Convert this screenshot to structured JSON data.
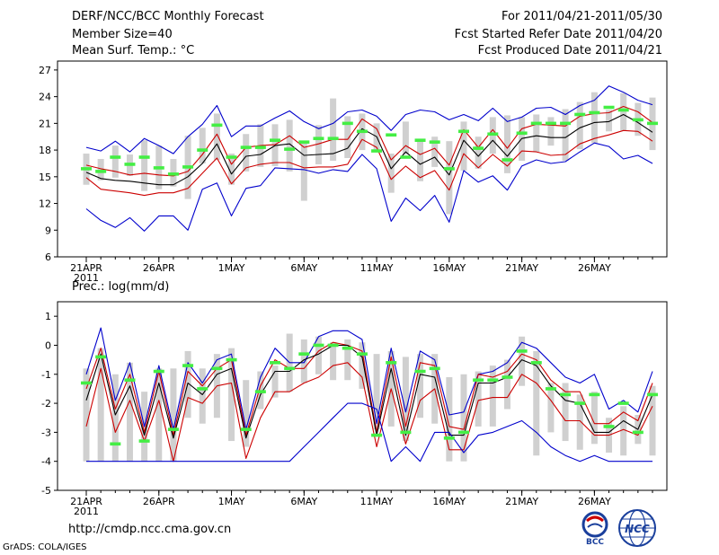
{
  "header": {
    "title": "DERF/NCC/BCC Monthly Forecast",
    "member_size": "Member Size=40",
    "variable": "Mean Surf. Temp.: °C",
    "period": "For 2011/04/21-2011/05/30",
    "refer_date": "Fcst Started Refer Date 2011/04/20",
    "produced_date": "Fcst Produced Date 2011/04/21"
  },
  "footer": {
    "url": "http://cmdp.ncc.cma.gov.cn",
    "grads": "GrADS: COLA/IGES",
    "logo_bcc": "BCC",
    "logo_ncc": "NCC"
  },
  "colors": {
    "frame": "#000000",
    "mean_line": "#000000",
    "spread_line": "#cc0000",
    "envelope_line": "#0000cc",
    "bar_fill": "#d0d0d0",
    "climatology": "#44ee44"
  },
  "chart_data": [
    {
      "type": "line",
      "title": "Mean Surf. Temp.: °C",
      "xlabel": "",
      "ylabel": "",
      "ylim": [
        6,
        28
      ],
      "yticks": [
        6,
        9,
        12,
        15,
        18,
        21,
        24,
        27
      ],
      "xticks": [
        {
          "day": 1,
          "label": "21APR",
          "sub": "2011"
        },
        {
          "day": 6,
          "label": "26APR"
        },
        {
          "day": 11,
          "label": "1MAY"
        },
        {
          "day": 16,
          "label": "6MAY"
        },
        {
          "day": 21,
          "label": "11MAY"
        },
        {
          "day": 26,
          "label": "16MAY"
        },
        {
          "day": 31,
          "label": "21MAY"
        },
        {
          "day": 36,
          "label": "26MAY"
        }
      ],
      "x": [
        1,
        2,
        3,
        4,
        5,
        6,
        7,
        8,
        9,
        10,
        11,
        12,
        13,
        14,
        15,
        16,
        17,
        18,
        19,
        20,
        21,
        22,
        23,
        24,
        25,
        26,
        27,
        28,
        29,
        30,
        31,
        32,
        33,
        34,
        35,
        36,
        37,
        38,
        39,
        40
      ],
      "series": [
        {
          "name": "ensemble max",
          "color": "#0000cc",
          "values": [
            18.3,
            17.9,
            19.0,
            17.8,
            19.3,
            18.5,
            17.6,
            19.5,
            20.9,
            23.0,
            19.5,
            20.7,
            20.7,
            21.6,
            22.4,
            21.2,
            20.4,
            21.0,
            22.3,
            22.5,
            21.8,
            20.2,
            22.0,
            22.5,
            22.3,
            21.4,
            22.0,
            21.3,
            22.7,
            21.2,
            21.7,
            22.7,
            22.8,
            22.0,
            23.0,
            23.6,
            25.2,
            24.5,
            23.6,
            23.1
          ]
        },
        {
          "name": "mean + spread",
          "color": "#cc0000",
          "values": [
            16.3,
            15.9,
            15.6,
            15.2,
            15.4,
            15.2,
            15.1,
            15.6,
            17.5,
            19.8,
            16.4,
            18.3,
            18.5,
            18.6,
            19.6,
            18.3,
            18.7,
            19.2,
            19.2,
            21.5,
            20.4,
            16.9,
            18.5,
            17.5,
            18.2,
            16.3,
            20.3,
            18.3,
            20.3,
            18.2,
            20.4,
            20.9,
            20.8,
            20.7,
            21.8,
            22.1,
            22.2,
            22.9,
            22.3,
            21.1
          ]
        },
        {
          "name": "ensemble mean",
          "color": "#000000",
          "values": [
            15.5,
            14.8,
            14.6,
            14.5,
            14.3,
            14.1,
            14.1,
            15.0,
            16.5,
            18.7,
            15.3,
            17.3,
            17.5,
            18.5,
            18.7,
            17.4,
            17.5,
            17.6,
            18.2,
            20.4,
            19.5,
            15.9,
            17.8,
            16.4,
            17.2,
            15.2,
            19.1,
            17.3,
            19.1,
            17.3,
            19.3,
            19.6,
            19.4,
            19.4,
            20.5,
            21.1,
            21.2,
            22.0,
            21.1,
            20.0
          ]
        },
        {
          "name": "mean - spread",
          "color": "#cc0000",
          "values": [
            14.9,
            13.6,
            13.4,
            13.2,
            12.9,
            13.2,
            13.2,
            13.7,
            15.4,
            17.1,
            14.2,
            16.0,
            16.4,
            16.6,
            16.6,
            16.0,
            16.1,
            16.1,
            16.4,
            19.2,
            18.3,
            14.7,
            16.2,
            14.9,
            15.7,
            13.5,
            17.6,
            16.0,
            17.5,
            16.2,
            17.9,
            17.8,
            17.4,
            17.5,
            18.7,
            19.3,
            19.7,
            20.2,
            20.1,
            19.0
          ]
        },
        {
          "name": "ensemble min",
          "color": "#0000cc",
          "values": [
            11.4,
            10.1,
            9.3,
            10.4,
            8.9,
            10.6,
            10.6,
            9.0,
            13.6,
            14.3,
            10.6,
            13.7,
            14.0,
            16.0,
            15.9,
            15.8,
            15.4,
            15.8,
            15.6,
            17.5,
            15.9,
            10.0,
            12.6,
            11.2,
            12.9,
            9.9,
            15.7,
            14.4,
            15.1,
            13.5,
            16.2,
            16.9,
            16.5,
            16.7,
            17.8,
            18.8,
            18.4,
            17.0,
            17.4,
            16.5
          ]
        }
      ],
      "bars": [
        [
          14.1,
          17.6
        ],
        [
          14.6,
          17.0
        ],
        [
          14.9,
          18.5
        ],
        [
          15.1,
          17.5
        ],
        [
          13.4,
          19.1
        ],
        [
          13.6,
          18.5
        ],
        [
          13.9,
          17.0
        ],
        [
          12.5,
          19.6
        ],
        [
          16.5,
          20.5
        ],
        [
          16.9,
          22.1
        ],
        [
          14.1,
          17.6
        ],
        [
          15.6,
          19.8
        ],
        [
          16.1,
          20.9
        ],
        [
          16.2,
          20.9
        ],
        [
          15.6,
          21.4
        ],
        [
          12.3,
          18.9
        ],
        [
          16.4,
          20.8
        ],
        [
          16.8,
          23.8
        ],
        [
          17.1,
          21.8
        ],
        [
          18.0,
          22.1
        ],
        [
          17.8,
          21.0
        ],
        [
          13.2,
          17.6
        ],
        [
          17.5,
          21.2
        ],
        [
          14.5,
          19.2
        ],
        [
          16.1,
          19.5
        ],
        [
          10.8,
          19.0
        ],
        [
          15.7,
          21.2
        ],
        [
          15.9,
          19.5
        ],
        [
          17.6,
          21.7
        ],
        [
          15.4,
          21.9
        ],
        [
          16.8,
          21.7
        ],
        [
          17.8,
          22.0
        ],
        [
          18.5,
          21.7
        ],
        [
          16.8,
          22.6
        ],
        [
          18.1,
          23.4
        ],
        [
          18.8,
          24.5
        ],
        [
          20.1,
          22.5
        ],
        [
          20.2,
          24.4
        ],
        [
          19.6,
          23.3
        ],
        [
          18.0,
          23.9
        ]
      ],
      "climatology": [
        15.9,
        15.6,
        17.2,
        16.4,
        17.2,
        16.0,
        15.3,
        16.1,
        18.0,
        20.8,
        17.2,
        18.3,
        18.3,
        19.1,
        18.1,
        18.9,
        19.3,
        19.3,
        21.0,
        20.1,
        17.9,
        19.7,
        17.2,
        19.1,
        18.9,
        15.9,
        20.1,
        18.2,
        19.8,
        16.9,
        19.9,
        21.0,
        21.0,
        21.0,
        22.0,
        22.2,
        22.8,
        22.5,
        21.4,
        21.0
      ]
    },
    {
      "type": "line",
      "title": "Prec.: log(mm/d)",
      "xlabel": "",
      "ylabel": "",
      "ylim": [
        -5,
        1.5
      ],
      "yticks": [
        -5,
        -4,
        -3,
        -2,
        -1,
        0,
        1
      ],
      "xticks": [
        {
          "day": 1,
          "label": "21APR",
          "sub": "2011"
        },
        {
          "day": 6,
          "label": "26APR"
        },
        {
          "day": 11,
          "label": "1MAY"
        },
        {
          "day": 16,
          "label": "6MAY"
        },
        {
          "day": 21,
          "label": "11MAY"
        },
        {
          "day": 26,
          "label": "16MAY"
        },
        {
          "day": 31,
          "label": "21MAY"
        },
        {
          "day": 36,
          "label": "26MAY"
        }
      ],
      "x": [
        1,
        2,
        3,
        4,
        5,
        6,
        7,
        8,
        9,
        10,
        11,
        12,
        13,
        14,
        15,
        16,
        17,
        18,
        19,
        20,
        21,
        22,
        23,
        24,
        25,
        26,
        27,
        28,
        29,
        30,
        31,
        32,
        33,
        34,
        35,
        36,
        37,
        38,
        39,
        40
      ],
      "series": [
        {
          "name": "ensemble max",
          "color": "#0000cc",
          "values": [
            -1.0,
            0.6,
            -1.9,
            -0.6,
            -2.8,
            -0.7,
            -2.9,
            -0.6,
            -1.3,
            -0.5,
            -0.3,
            -2.9,
            -1.1,
            -0.1,
            -0.6,
            -0.6,
            0.3,
            0.5,
            0.5,
            0.2,
            -2.7,
            -0.1,
            -2.3,
            -0.2,
            -0.5,
            -2.4,
            -2.3,
            -1.0,
            -0.9,
            -0.6,
            0.1,
            -0.1,
            -0.6,
            -1.1,
            -1.3,
            -1.0,
            -2.2,
            -1.9,
            -2.3,
            -0.9
          ]
        },
        {
          "name": "mean + spread",
          "color": "#cc0000",
          "values": [
            -1.5,
            -0.1,
            -2.2,
            -1.0,
            -3.0,
            -0.9,
            -3.1,
            -0.9,
            -1.4,
            -0.8,
            -0.5,
            -3.1,
            -1.4,
            -0.5,
            -0.8,
            -0.8,
            -0.2,
            0.1,
            0.0,
            -0.2,
            -3.0,
            -0.4,
            -2.8,
            -0.6,
            -0.7,
            -2.8,
            -2.9,
            -1.0,
            -1.1,
            -0.9,
            -0.3,
            -0.5,
            -1.2,
            -1.6,
            -1.6,
            -2.7,
            -2.7,
            -2.3,
            -2.6,
            -1.3
          ]
        },
        {
          "name": "ensemble mean",
          "color": "#000000",
          "values": [
            -1.9,
            -0.3,
            -2.4,
            -1.4,
            -3.1,
            -1.3,
            -3.2,
            -1.3,
            -1.7,
            -1.0,
            -0.8,
            -3.2,
            -1.7,
            -0.9,
            -0.9,
            -0.5,
            -0.3,
            0.0,
            0.0,
            -0.4,
            -3.1,
            -0.8,
            -3.1,
            -1.0,
            -1.1,
            -3.1,
            -3.1,
            -1.3,
            -1.3,
            -1.1,
            -0.5,
            -0.7,
            -1.4,
            -1.9,
            -2.0,
            -3.0,
            -3.0,
            -2.6,
            -2.9,
            -1.7
          ]
        },
        {
          "name": "mean - spread",
          "color": "#cc0000",
          "values": [
            -2.8,
            -0.8,
            -3.0,
            -1.9,
            -3.3,
            -1.9,
            -4.0,
            -1.8,
            -2.0,
            -1.4,
            -1.3,
            -3.9,
            -2.5,
            -1.6,
            -1.6,
            -1.3,
            -1.1,
            -0.7,
            -0.6,
            -1.1,
            -3.5,
            -1.5,
            -3.4,
            -1.9,
            -1.5,
            -3.6,
            -3.6,
            -1.9,
            -1.8,
            -1.8,
            -1.0,
            -1.3,
            -1.9,
            -2.6,
            -2.6,
            -3.1,
            -3.1,
            -2.9,
            -3.1,
            -2.1
          ]
        },
        {
          "name": "ensemble min",
          "color": "#0000cc",
          "values": [
            -4.0,
            -4.0,
            -4.0,
            -4.0,
            -4.0,
            -4.0,
            -4.0,
            -4.0,
            -4.0,
            -4.0,
            -4.0,
            -4.0,
            -4.0,
            -4.0,
            -4.0,
            -3.5,
            -3.0,
            -2.5,
            -2.0,
            -2.0,
            -2.2,
            -4.0,
            -3.5,
            -4.0,
            -3.0,
            -3.0,
            -3.7,
            -3.1,
            -3.0,
            -2.8,
            -2.6,
            -3.0,
            -3.5,
            -3.8,
            -4.0,
            -3.8,
            -4.0,
            -4.0,
            -4.0,
            -4.0
          ]
        }
      ],
      "bars": [
        [
          -4.0,
          -0.8
        ],
        [
          -4.0,
          -0.1
        ],
        [
          -4.0,
          -1.0
        ],
        [
          -4.0,
          -0.6
        ],
        [
          -4.0,
          -1.6
        ],
        [
          -4.0,
          -0.8
        ],
        [
          -4.0,
          -0.8
        ],
        [
          -2.5,
          -0.2
        ],
        [
          -2.7,
          -0.8
        ],
        [
          -2.5,
          -0.3
        ],
        [
          -3.3,
          -0.1
        ],
        [
          -3.5,
          -1.2
        ],
        [
          -2.2,
          -0.9
        ],
        [
          -1.8,
          -0.7
        ],
        [
          -1.6,
          0.4
        ],
        [
          -1.3,
          0.2
        ],
        [
          -1.0,
          0.3
        ],
        [
          -1.2,
          0.1
        ],
        [
          -1.2,
          0.2
        ],
        [
          -1.5,
          0.1
        ],
        [
          -2.9,
          -0.3
        ],
        [
          -2.8,
          -0.2
        ],
        [
          -3.3,
          -0.4
        ],
        [
          -2.5,
          -0.3
        ],
        [
          -2.7,
          -0.3
        ],
        [
          -4.0,
          -1.1
        ],
        [
          -4.0,
          -1.0
        ],
        [
          -2.8,
          -0.9
        ],
        [
          -2.8,
          -0.7
        ],
        [
          -2.2,
          -0.5
        ],
        [
          -1.4,
          0.3
        ],
        [
          -3.8,
          -0.2
        ],
        [
          -3.0,
          -1.3
        ],
        [
          -3.3,
          -1.3
        ],
        [
          -3.6,
          -1.7
        ],
        [
          -3.4,
          -1.6
        ],
        [
          -3.7,
          -2.5
        ],
        [
          -3.8,
          -2.1
        ],
        [
          -3.4,
          -2.4
        ],
        [
          -3.8,
          -1.4
        ]
      ],
      "climatology": [
        -1.3,
        -0.4,
        -3.4,
        -1.2,
        -3.3,
        -0.9,
        -2.9,
        -0.7,
        -1.5,
        -0.8,
        -0.5,
        -2.9,
        -1.6,
        -0.6,
        -0.8,
        -0.3,
        0.0,
        0.0,
        -0.1,
        -0.3,
        -3.1,
        -0.6,
        -3.0,
        -0.9,
        -0.8,
        -3.2,
        -3.0,
        -1.2,
        -1.2,
        -1.1,
        -0.2,
        -0.6,
        -1.5,
        -1.7,
        -2.0,
        -1.7,
        -2.8,
        -2.0,
        -3.0,
        -1.7
      ]
    }
  ]
}
